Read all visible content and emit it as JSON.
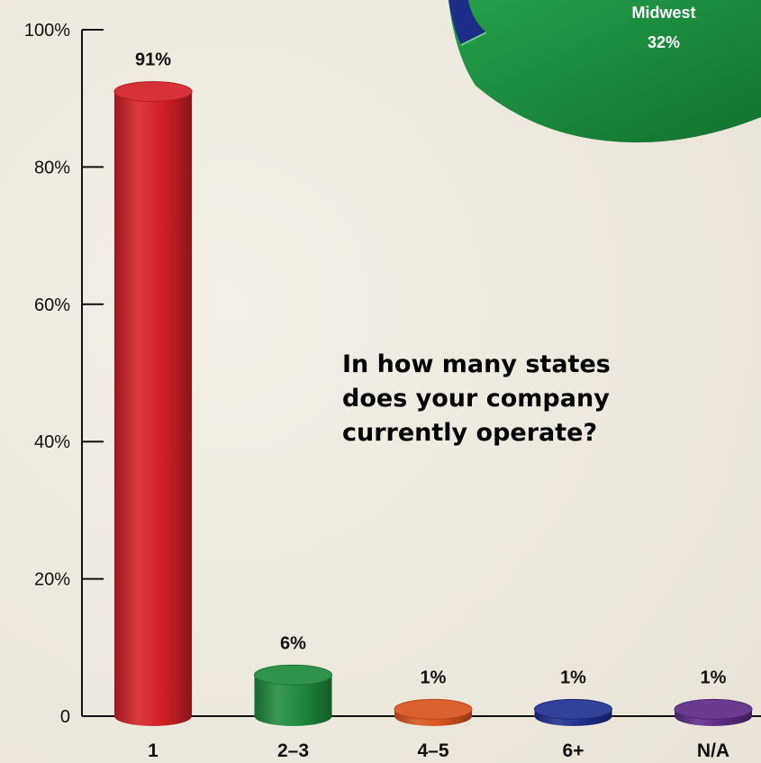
{
  "chart_data": [
    {
      "type": "bar",
      "title": "In how many states does your company currently operate?",
      "title_lines": [
        "In how many states",
        "does your company",
        "currently operate?"
      ],
      "categories": [
        "1",
        "2–3",
        "4–5",
        "6+",
        "N/A"
      ],
      "values": [
        91,
        6,
        1,
        1,
        1
      ],
      "value_labels": [
        "91%",
        "6%",
        "1%",
        "1%",
        "1%"
      ],
      "colors": [
        "#d42027",
        "#1e8a3c",
        "#d9531e",
        "#1f2f8f",
        "#5e2a86"
      ],
      "ylim": [
        0,
        100
      ],
      "yticks": [
        {
          "value": 0,
          "label": "0"
        },
        {
          "value": 20,
          "label": "20%"
        },
        {
          "value": 40,
          "label": "40%"
        },
        {
          "value": 60,
          "label": "60%"
        },
        {
          "value": 80,
          "label": "80%"
        },
        {
          "value": 100,
          "label": "100%"
        }
      ],
      "grid": false,
      "style": "3d-cylinder"
    },
    {
      "type": "pie",
      "partial": true,
      "slices": [
        {
          "label": "Midwest",
          "value": 32,
          "value_label": "32%",
          "color": "#1e8a3c"
        }
      ]
    }
  ]
}
